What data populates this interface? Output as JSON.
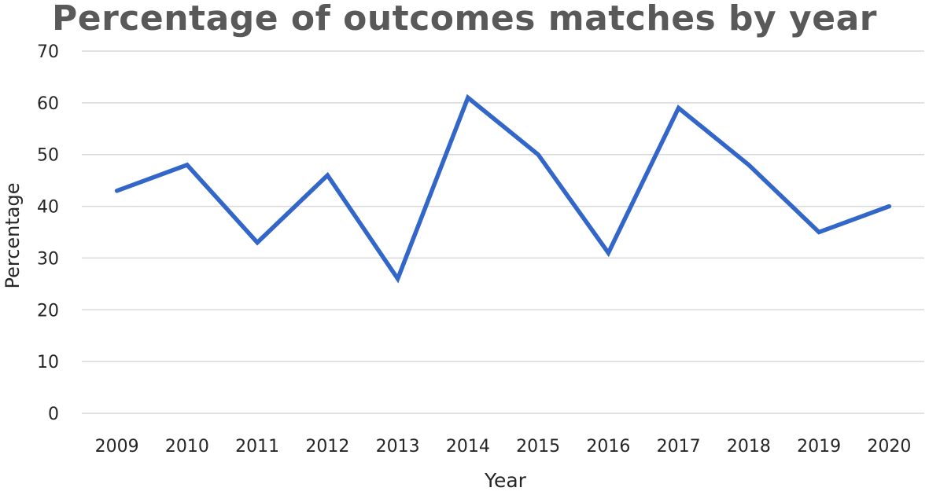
{
  "chart_data": {
    "type": "line",
    "title": "Percentage of outcomes matches by year",
    "xlabel": "Year",
    "ylabel": "Percentage",
    "categories": [
      "2009",
      "2010",
      "2011",
      "2012",
      "2013",
      "2014",
      "2015",
      "2016",
      "2017",
      "2018",
      "2019",
      "2020"
    ],
    "series": [
      {
        "values": [
          43,
          48,
          33,
          46,
          26,
          61,
          50,
          31,
          59,
          48,
          35,
          40
        ],
        "color": "#3366c9"
      }
    ],
    "ylim": [
      0,
      70
    ],
    "yticks": [
      "0",
      "10",
      "20",
      "30",
      "40",
      "50",
      "60",
      "70"
    ],
    "grid": true,
    "gridColor": "#d9d9d9",
    "legend": "none"
  }
}
